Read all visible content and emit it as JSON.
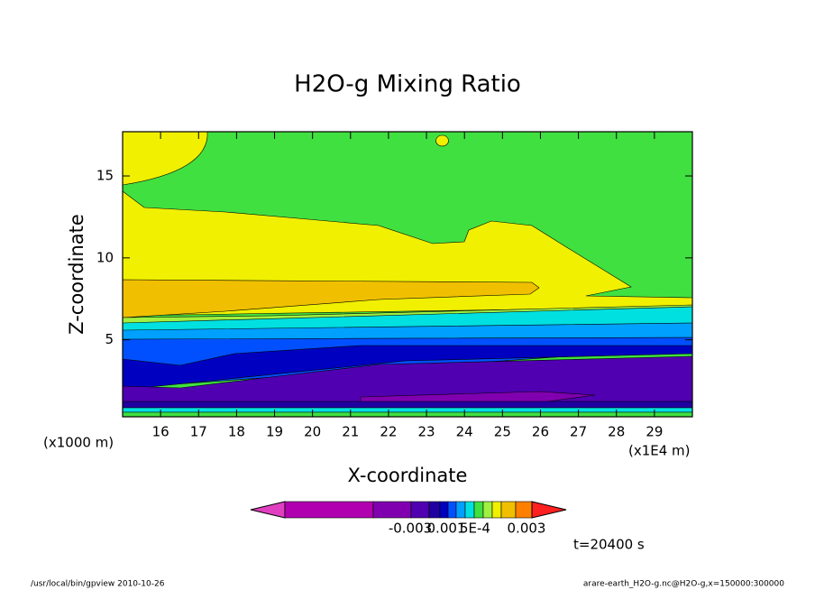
{
  "chart_data": {
    "type": "contour",
    "title": "H2O-g Mixing Ratio",
    "xlabel": "X-coordinate",
    "ylabel": "Z-coordinate",
    "xunit": "(x1E4 m)",
    "yunit": "(x1000 m)",
    "xlim": [
      15,
      30
    ],
    "ylim": [
      0.3,
      17.7
    ],
    "xticks": [
      16,
      17,
      18,
      19,
      20,
      21,
      22,
      23,
      24,
      25,
      26,
      27,
      28,
      29
    ],
    "yticks": [
      5,
      10,
      15
    ],
    "colorbar": {
      "colors": [
        "#e040c0",
        "#b000b0",
        "#8000b0",
        "#5000b0",
        "#2000a0",
        "#0000c0",
        "#0050ff",
        "#00a0ff",
        "#00e0e0",
        "#40e040",
        "#a0f040",
        "#f0f000",
        "#f0c000",
        "#ff8000",
        "#ff2020"
      ],
      "ticks": [
        -0.003,
        {
          "value": 0.001,
          "label": "0.001"
        },
        {
          "value": 0.0005,
          "label": "5E-4"
        },
        0.003
      ]
    },
    "time_label": "t=20400 s",
    "footer_left": "/usr/local/bin/gpview  2010-10-26",
    "footer_right": "arare-earth_H2O-g.nc@H2O-g,x=150000:300000"
  }
}
